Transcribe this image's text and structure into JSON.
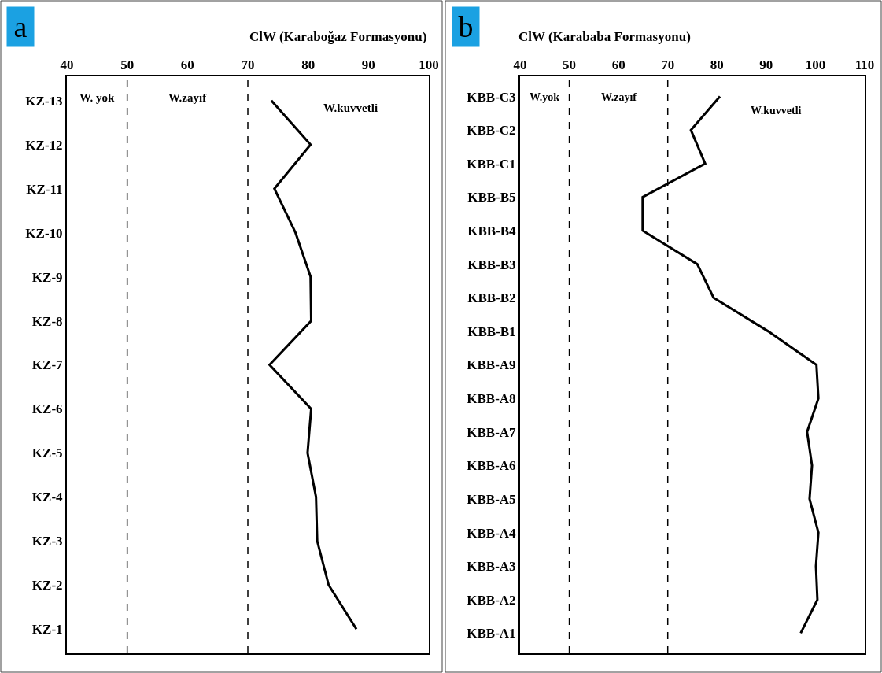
{
  "chart_data": [
    {
      "type": "line",
      "orientation": "horizontal",
      "title": "ClW (Karaboğaz Formasyonu)",
      "annotations": [
        "a",
        "W. yok",
        "W.zayıf",
        "W.kuvvetli"
      ],
      "categories": [
        "KZ-13",
        "KZ-12",
        "KZ-11",
        "KZ-10",
        "KZ-9",
        "KZ-8",
        "KZ-7",
        "KZ-6",
        "KZ-5",
        "KZ-4",
        "KZ-3",
        "KZ-2",
        "KZ-1"
      ],
      "series": [
        {
          "color": "#000000",
          "values": [
            73.9,
            80.4,
            74.4,
            77.9,
            80.4,
            80.5,
            73.6,
            80.5,
            79.9,
            81.3,
            81.5,
            83.4,
            88.0
          ]
        }
      ],
      "xlim": [
        40,
        100
      ],
      "xticks": [
        40,
        50,
        60,
        70,
        80,
        90,
        100
      ],
      "ref_lines": [
        {
          "axis": "x",
          "value": 50,
          "line_style": "dashed"
        },
        {
          "axis": "x",
          "value": 70,
          "line_style": "dashed"
        }
      ],
      "marker": "none",
      "line_style": "solid"
    },
    {
      "type": "line",
      "orientation": "horizontal",
      "title": "ClW (Karababa Formasyonu)",
      "annotations": [
        "b",
        "W.yok",
        "W.zayıf",
        "W.kuvvetli"
      ],
      "categories": [
        "KBB-C3",
        "KBB-C2",
        "KBB-C1",
        "KBB-B5",
        "KBB-B4",
        "KBB-B3",
        "KBB-B2",
        "KBB-B1",
        "KBB-A9",
        "KBB-A8",
        "KBB-A7",
        "KBB-A6",
        "KBB-A5",
        "KBB-A4",
        "KBB-A3",
        "KBB-A2",
        "KBB-A1"
      ],
      "series": [
        {
          "color": "#000000",
          "values": [
            80.6,
            74.7,
            77.6,
            64.9,
            64.9,
            76.0,
            79.3,
            90.4,
            100.2,
            100.6,
            98.3,
            99.3,
            98.8,
            100.6,
            100.1,
            100.4,
            97.0
          ]
        }
      ],
      "xlim": [
        40,
        110
      ],
      "xticks": [
        40,
        50,
        60,
        70,
        80,
        90,
        100,
        110
      ],
      "ref_lines": [
        {
          "axis": "x",
          "value": 50,
          "line_style": "dashed"
        },
        {
          "axis": "x",
          "value": 70,
          "line_style": "dashed"
        }
      ],
      "marker": "none",
      "line_style": "solid"
    }
  ]
}
